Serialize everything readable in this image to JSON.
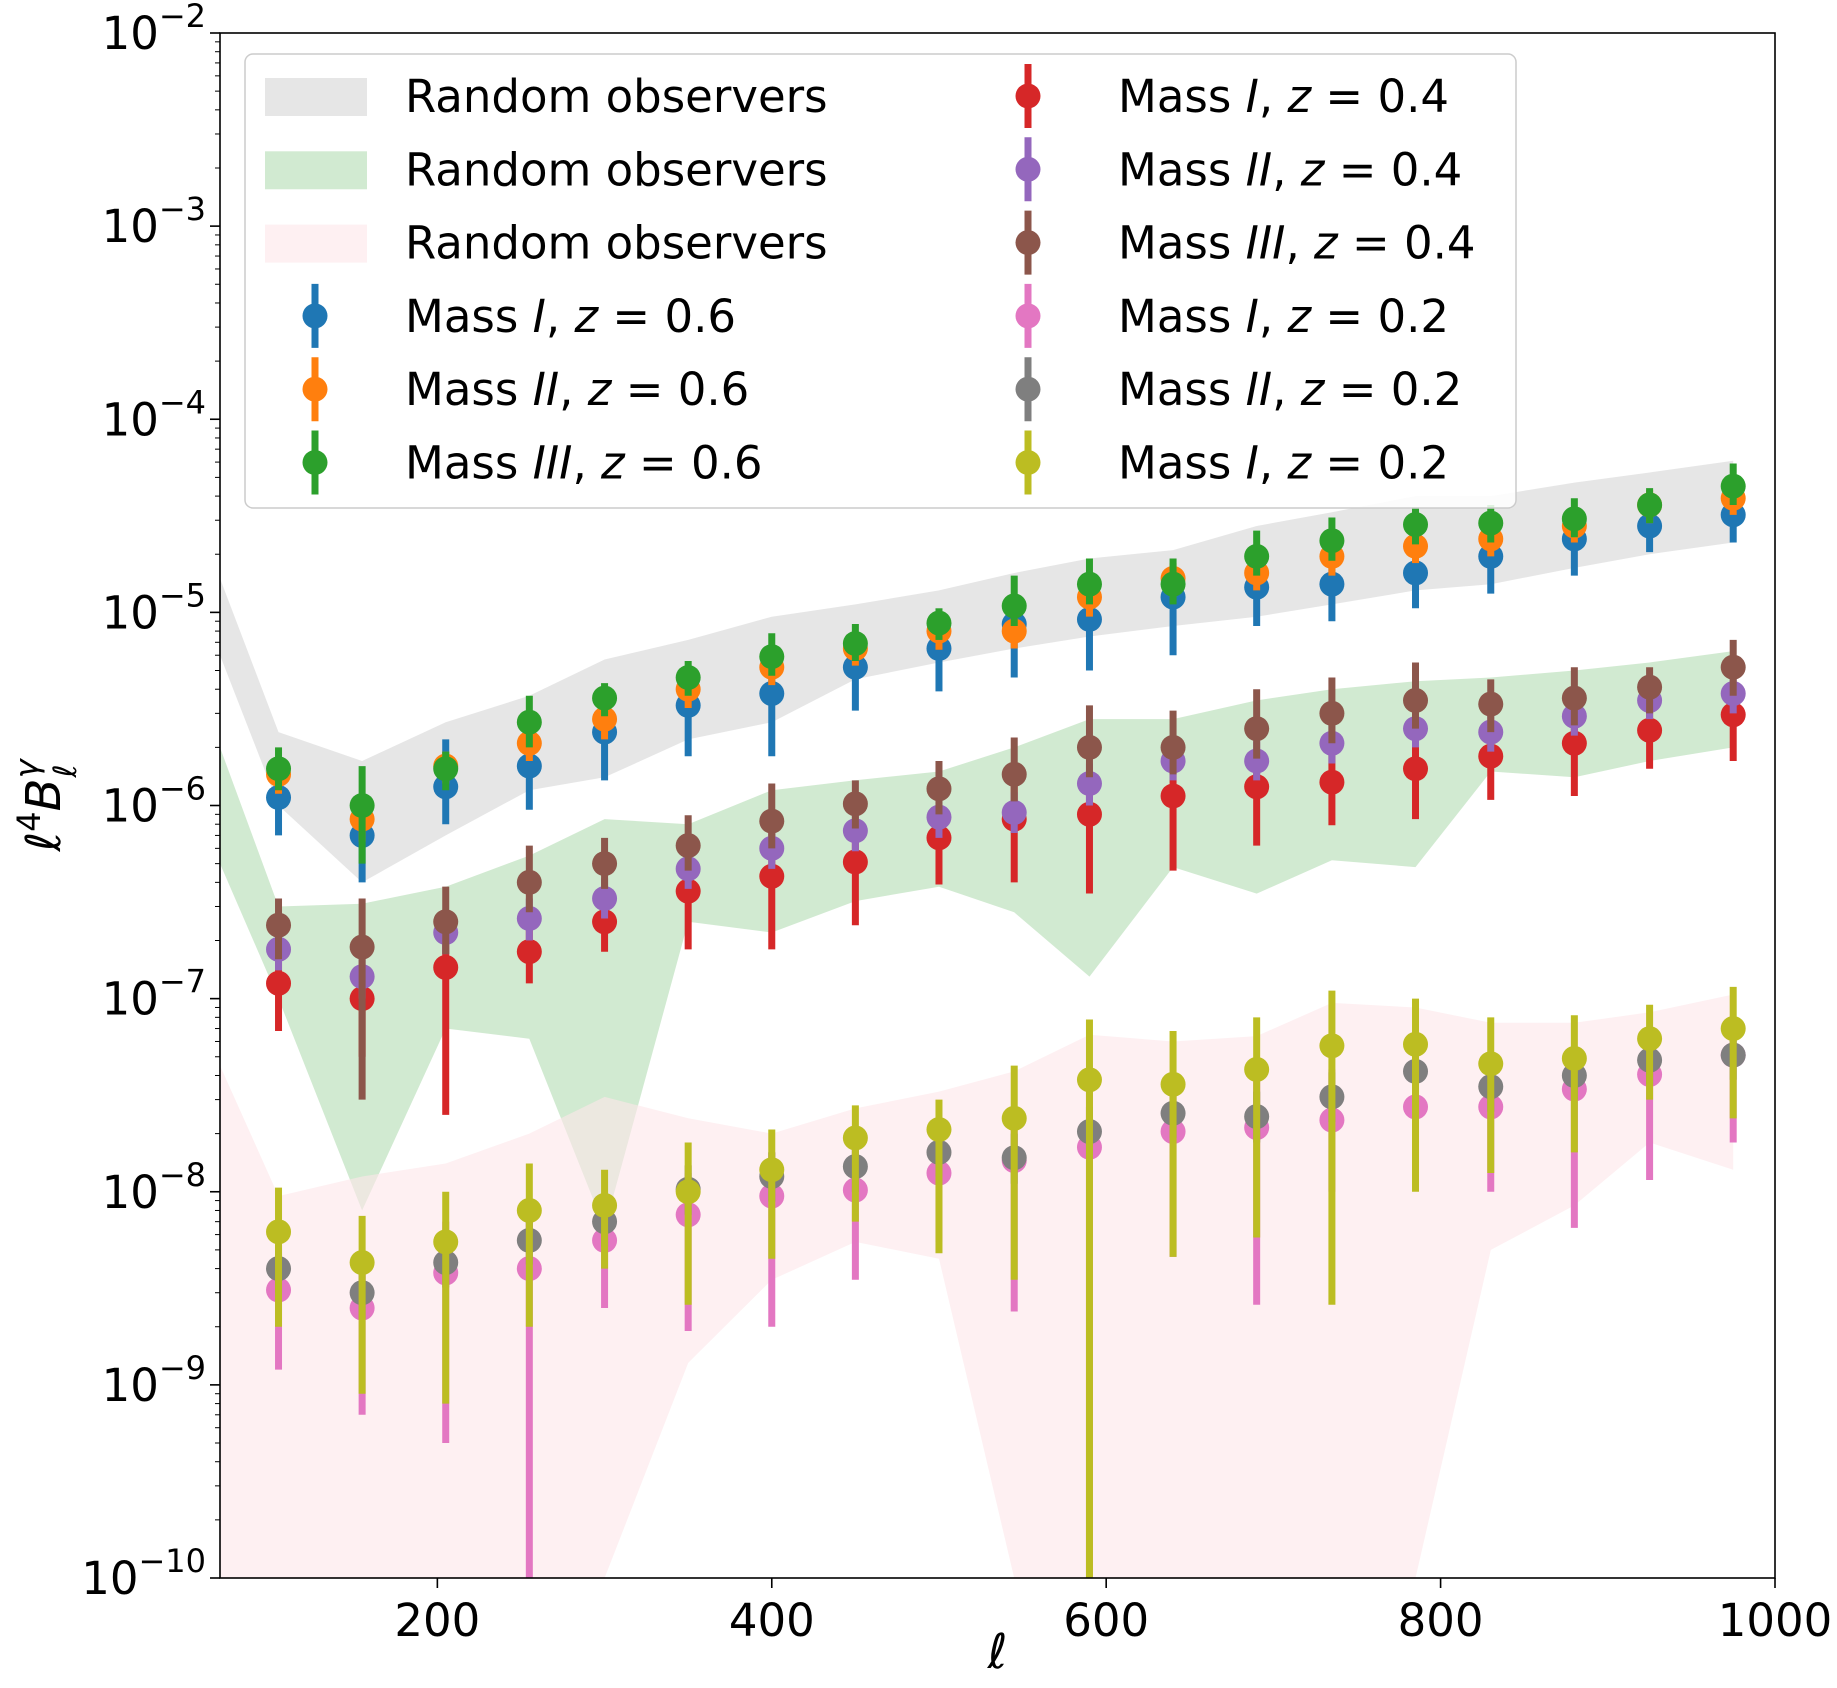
{
  "chart_data": {
    "type": "scatter",
    "title": "",
    "xlabel": "ℓ",
    "ylabel": "ℓ⁴B_ℓ^γ",
    "xscale": "linear",
    "yscale": "log",
    "xlim": [
      70,
      1000
    ],
    "ylim": [
      1e-10,
      0.01
    ],
    "grid": false,
    "legend_position": "upper-left",
    "x_ticks": [
      {
        "value": 200,
        "label": "200"
      },
      {
        "value": 400,
        "label": "400"
      },
      {
        "value": 600,
        "label": "600"
      },
      {
        "value": 800,
        "label": "800"
      },
      {
        "value": 1000,
        "label": "1000"
      }
    ],
    "y_ticks": [
      {
        "value": 1e-10,
        "base": "10",
        "exp": "−10"
      },
      {
        "value": 1e-09,
        "base": "10",
        "exp": "−9"
      },
      {
        "value": 1e-08,
        "base": "10",
        "exp": "−8"
      },
      {
        "value": 1e-07,
        "base": "10",
        "exp": "−7"
      },
      {
        "value": 1e-06,
        "base": "10",
        "exp": "−6"
      },
      {
        "value": 1e-05,
        "base": "10",
        "exp": "−5"
      },
      {
        "value": 0.0001,
        "base": "10",
        "exp": "−4"
      },
      {
        "value": 0.001,
        "base": "10",
        "exp": "−3"
      },
      {
        "value": 0.01,
        "base": "10",
        "exp": "−2"
      }
    ],
    "bands": [
      {
        "name": "Random observers",
        "color": "#c8c8c8",
        "opacity": 0.45,
        "x": [
          70,
          105,
          155,
          205,
          255,
          300,
          350,
          400,
          450,
          500,
          545,
          590,
          640,
          690,
          735,
          785,
          830,
          880,
          925,
          975
        ],
        "upper": [
          1.5e-05,
          2.4e-06,
          1.7e-06,
          2.7e-06,
          3.7e-06,
          5.7e-06,
          7.2e-06,
          9.5e-06,
          1.1e-05,
          1.3e-05,
          1.6e-05,
          1.9e-05,
          2.1e-05,
          2.8e-05,
          3.3e-05,
          4e-05,
          4e-05,
          4.7e-05,
          5.3e-05,
          6.1e-05
        ],
        "lower": [
          6e-06,
          1e-06,
          4e-07,
          7e-07,
          1.2e-06,
          1.4e-06,
          2.2e-06,
          2.7e-06,
          4.5e-06,
          5.5e-06,
          6.5e-06,
          7.5e-06,
          8.5e-06,
          9.5e-06,
          1.1e-05,
          1.3e-05,
          1.4e-05,
          1.7e-05,
          2e-05,
          2.3e-05
        ]
      },
      {
        "name": "Random observers",
        "color": "#2ca02c",
        "opacity": 0.22,
        "x": [
          70,
          105,
          155,
          205,
          255,
          300,
          350,
          400,
          450,
          500,
          545,
          590,
          640,
          690,
          735,
          785,
          830,
          880,
          925,
          975
        ],
        "upper": [
          2e-06,
          3e-07,
          3.1e-07,
          3.8e-07,
          5.5e-07,
          8.5e-07,
          8e-07,
          1.2e-06,
          1.35e-06,
          1.5e-06,
          2e-06,
          2.8e-06,
          2.8e-06,
          3.5e-06,
          4e-06,
          4.4e-06,
          4.6e-06,
          5e-06,
          5.5e-06,
          6.3e-06
        ],
        "lower": [
          5e-07,
          1e-07,
          8e-09,
          7e-08,
          6.2e-08,
          6.5e-09,
          2.5e-07,
          2.2e-07,
          3.2e-07,
          3.8e-07,
          2.8e-07,
          1.3e-07,
          4.8e-07,
          3.5e-07,
          5.2e-07,
          4.8e-07,
          1.5e-06,
          1.4e-06,
          1.7e-06,
          2e-06
        ]
      },
      {
        "name": "Random observers",
        "color": "#fde6ea",
        "opacity": 0.6,
        "x": [
          70,
          105,
          155,
          205,
          255,
          300,
          350,
          400,
          450,
          500,
          545,
          590,
          640,
          690,
          735,
          785,
          830,
          880,
          925,
          975
        ],
        "upper": [
          4.5e-08,
          9.5e-09,
          1.2e-08,
          1.4e-08,
          2e-08,
          3.1e-08,
          2.4e-08,
          2e-08,
          2.7e-08,
          3.3e-08,
          4.2e-08,
          6.5e-08,
          6e-08,
          6.4e-08,
          9.5e-08,
          9e-08,
          7.5e-08,
          7.5e-08,
          8.5e-08,
          1.05e-07
        ],
        "lower": [
          1e-10,
          1e-10,
          1e-10,
          1e-10,
          1e-10,
          1e-10,
          1.3e-09,
          3.5e-09,
          5.5e-09,
          4.5e-09,
          1e-10,
          1e-10,
          1e-10,
          1e-10,
          1e-10,
          1e-10,
          5e-09,
          8.5e-09,
          1.8e-08,
          1.3e-08
        ]
      }
    ],
    "series": [
      {
        "name": "Mass I, z=0.6",
        "label_parts": [
          "Mass ",
          "I",
          ", z = 0.6"
        ],
        "color": "#1f77b4",
        "x": [
          105,
          155,
          205,
          255,
          300,
          350,
          400,
          450,
          500,
          545,
          590,
          640,
          690,
          735,
          785,
          830,
          880,
          925,
          975
        ],
        "y": [
          1.1e-06,
          7e-07,
          1.25e-06,
          1.6e-06,
          2.4e-06,
          3.3e-06,
          3.8e-06,
          5.2e-06,
          6.5e-06,
          8.7e-06,
          9.2e-06,
          1.2e-05,
          1.35e-05,
          1.4e-05,
          1.6e-05,
          1.95e-05,
          2.4e-05,
          2.8e-05,
          3.2e-05
        ],
        "yerr_low": [
          7e-07,
          4e-07,
          8e-07,
          9.5e-07,
          1.35e-06,
          1.8e-06,
          1.8e-06,
          3.1e-06,
          3.9e-06,
          4.6e-06,
          5e-06,
          6e-06,
          8.5e-06,
          9e-06,
          1.05e-05,
          1.25e-05,
          1.55e-05,
          2.05e-05,
          2.3e-05
        ],
        "yerr_high": [
          1.6e-06,
          9e-07,
          2.2e-06,
          2.3e-06,
          3.5e-06,
          4.5e-06,
          5.8e-06,
          6.9e-06,
          9e-06,
          1.1e-05,
          1.3e-05,
          1.6e-05,
          1.9e-05,
          2e-05,
          2.3e-05,
          2.8e-05,
          3.2e-05,
          3.8e-05,
          4.3e-05
        ]
      },
      {
        "name": "Mass II, z=0.6",
        "label_parts": [
          "Mass ",
          "II",
          ", z = 0.6"
        ],
        "color": "#ff7f0e",
        "x": [
          105,
          155,
          205,
          255,
          300,
          350,
          400,
          450,
          500,
          545,
          590,
          640,
          690,
          735,
          785,
          830,
          880,
          925,
          975
        ],
        "y": [
          1.45e-06,
          8.5e-07,
          1.6e-06,
          2.1e-06,
          2.8e-06,
          4e-06,
          5.2e-06,
          6.5e-06,
          8e-06,
          8e-06,
          1.2e-05,
          1.5e-05,
          1.6e-05,
          1.95e-05,
          2.2e-05,
          2.4e-05,
          2.8e-05,
          3.6e-05,
          3.9e-05
        ],
        "yerr_low": [
          1.15e-06,
          6.5e-07,
          1.3e-06,
          1.7e-06,
          2.2e-06,
          3.2e-06,
          4.2e-06,
          5.3e-06,
          6.4e-06,
          6.5e-06,
          9.5e-06,
          1.2e-05,
          1.3e-05,
          1.55e-05,
          1.8e-05,
          1.95e-05,
          2.3e-05,
          2.9e-05,
          3.2e-05
        ],
        "yerr_high": [
          1.75e-06,
          1.05e-06,
          1.9e-06,
          2.5e-06,
          3.4e-06,
          4.8e-06,
          6.2e-06,
          7.8e-06,
          9.5e-06,
          9.6e-06,
          1.45e-05,
          1.8e-05,
          1.95e-05,
          2.35e-05,
          2.6e-05,
          2.9e-05,
          3.4e-05,
          4.3e-05,
          4.7e-05
        ]
      },
      {
        "name": "Mass III, z=0.6",
        "label_parts": [
          "Mass ",
          "III",
          ", z = 0.6"
        ],
        "color": "#2ca02c",
        "x": [
          105,
          155,
          205,
          255,
          300,
          350,
          400,
          450,
          500,
          545,
          590,
          640,
          690,
          735,
          785,
          830,
          880,
          925,
          975
        ],
        "y": [
          1.55e-06,
          1e-06,
          1.55e-06,
          2.7e-06,
          3.6e-06,
          4.6e-06,
          5.9e-06,
          6.9e-06,
          8.8e-06,
          1.08e-05,
          1.4e-05,
          1.4e-05,
          1.95e-05,
          2.35e-05,
          2.85e-05,
          2.9e-05,
          3.05e-05,
          3.6e-05,
          4.5e-05
        ],
        "yerr_low": [
          1.2e-06,
          5e-07,
          1.2e-06,
          2e-06,
          2.9e-06,
          3.7e-06,
          4.7e-06,
          5.6e-06,
          7.2e-06,
          8.5e-06,
          1.1e-05,
          1.1e-05,
          1.55e-05,
          1.85e-05,
          2.25e-05,
          2.3e-05,
          2.45e-05,
          2.9e-05,
          3.6e-05
        ],
        "yerr_high": [
          2e-06,
          1.6e-06,
          1.9e-06,
          3.7e-06,
          4.3e-06,
          5.6e-06,
          7.8e-06,
          8.7e-06,
          1.05e-05,
          1.55e-05,
          1.9e-05,
          1.9e-05,
          2.65e-05,
          3.1e-05,
          3.5e-05,
          3.6e-05,
          3.9e-05,
          4.4e-05,
          5.9e-05
        ]
      },
      {
        "name": "Mass I, z=0.4",
        "label_parts": [
          "Mass ",
          "I",
          ", z = 0.4"
        ],
        "color": "#d62728",
        "x": [
          105,
          155,
          205,
          255,
          300,
          350,
          400,
          450,
          500,
          545,
          590,
          640,
          690,
          735,
          785,
          830,
          880,
          925,
          975
        ],
        "y": [
          1.2e-07,
          1e-07,
          1.45e-07,
          1.75e-07,
          2.5e-07,
          3.6e-07,
          4.3e-07,
          5.1e-07,
          6.8e-07,
          8.5e-07,
          9e-07,
          1.12e-06,
          1.25e-06,
          1.32e-06,
          1.55e-06,
          1.8e-06,
          2.1e-06,
          2.45e-06,
          2.95e-06
        ],
        "yerr_low": [
          6.8e-08,
          5e-08,
          2.5e-08,
          1.2e-07,
          1.75e-07,
          1.8e-07,
          1.8e-07,
          2.4e-07,
          3.9e-07,
          4e-07,
          3.5e-07,
          4.6e-07,
          6.2e-07,
          7.9e-07,
          8.5e-07,
          1.07e-06,
          1.12e-06,
          1.55e-06,
          1.7e-06
        ],
        "yerr_high": [
          1.75e-07,
          1.5e-07,
          2.6e-07,
          2.3e-07,
          3.2e-07,
          5.6e-07,
          7.2e-07,
          8.2e-07,
          9.9e-07,
          1.3e-06,
          1.46e-06,
          1.8e-06,
          1.9e-06,
          1.85e-06,
          2.25e-06,
          2.5e-06,
          3.1e-06,
          3.4e-06,
          4.2e-06
        ]
      },
      {
        "name": "Mass II, z=0.4",
        "label_parts": [
          "Mass ",
          "II",
          ", z = 0.4"
        ],
        "color": "#9467bd",
        "x": [
          105,
          155,
          205,
          255,
          300,
          350,
          400,
          450,
          500,
          545,
          590,
          640,
          690,
          735,
          785,
          830,
          880,
          925,
          975
        ],
        "y": [
          1.8e-07,
          1.3e-07,
          2.2e-07,
          2.6e-07,
          3.3e-07,
          4.7e-07,
          6e-07,
          7.4e-07,
          8.7e-07,
          9.2e-07,
          1.3e-06,
          1.7e-06,
          1.7e-06,
          2.1e-06,
          2.5e-06,
          2.4e-06,
          2.9e-06,
          3.5e-06,
          3.8e-06
        ],
        "yerr_low": [
          1.4e-07,
          1e-07,
          1.7e-07,
          2e-07,
          2.6e-07,
          3.7e-07,
          4.7e-07,
          5.8e-07,
          6.8e-07,
          7.2e-07,
          1e-06,
          1.35e-06,
          1.35e-06,
          1.65e-06,
          2e-06,
          1.9e-06,
          2.3e-06,
          2.8e-06,
          3e-06
        ],
        "yerr_high": [
          2.3e-07,
          1.7e-07,
          2.8e-07,
          3.3e-07,
          4.2e-07,
          6e-07,
          7.6e-07,
          9.4e-07,
          1.1e-06,
          1.17e-06,
          1.65e-06,
          2.15e-06,
          2.15e-06,
          2.65e-06,
          3.15e-06,
          3e-06,
          3.65e-06,
          4.4e-06,
          4.8e-06
        ]
      },
      {
        "name": "Mass III, z=0.4",
        "label_parts": [
          "Mass ",
          "III",
          ", z = 0.4"
        ],
        "color": "#8c564b",
        "x": [
          105,
          155,
          205,
          255,
          300,
          350,
          400,
          450,
          500,
          545,
          590,
          640,
          690,
          735,
          785,
          830,
          880,
          925,
          975
        ],
        "y": [
          2.4e-07,
          1.85e-07,
          2.5e-07,
          4e-07,
          5e-07,
          6.2e-07,
          8.3e-07,
          1.02e-06,
          1.22e-06,
          1.45e-06,
          2e-06,
          2e-06,
          2.5e-06,
          3e-06,
          3.5e-06,
          3.35e-06,
          3.6e-06,
          4.1e-06,
          5.2e-06
        ],
        "yerr_low": [
          1.6e-07,
          3e-08,
          1.7e-07,
          2.8e-07,
          3.7e-07,
          4.6e-07,
          6e-07,
          7.6e-07,
          9e-07,
          1.05e-06,
          1.4e-06,
          1.45e-06,
          1.75e-06,
          2.1e-06,
          2.5e-06,
          2.4e-06,
          2.6e-06,
          3e-06,
          3.7e-06
        ],
        "yerr_high": [
          3.3e-07,
          3.3e-07,
          3.8e-07,
          6.2e-07,
          6.8e-07,
          8.9e-07,
          1.3e-06,
          1.35e-06,
          1.7e-06,
          2.25e-06,
          3.3e-06,
          3.1e-06,
          4e-06,
          4.6e-06,
          5.5e-06,
          4.5e-06,
          5.2e-06,
          5.2e-06,
          7.2e-06
        ]
      },
      {
        "name": "Mass I, z=0.2",
        "label_parts": [
          "Mass ",
          "I",
          ", z = 0.2"
        ],
        "color": "#e377c2",
        "x": [
          105,
          155,
          205,
          255,
          300,
          350,
          400,
          450,
          500,
          545,
          590,
          640,
          690,
          735,
          785,
          830,
          880,
          925,
          975
        ],
        "y": [
          3.1e-09,
          2.5e-09,
          3.8e-09,
          4e-09,
          5.6e-09,
          7.6e-09,
          9.5e-09,
          1.02e-08,
          1.25e-08,
          1.45e-08,
          1.7e-08,
          2.05e-08,
          2.15e-08,
          2.35e-08,
          2.75e-08,
          2.75e-08,
          3.4e-08,
          4.05e-08,
          5.1e-08
        ],
        "yerr_low": [
          1.2e-09,
          7e-10,
          5e-10,
          1e-10,
          2.5e-09,
          1.9e-09,
          2e-09,
          3.5e-09,
          5.5e-09,
          2.4e-09,
          1e-10,
          4.6e-09,
          2.6e-09,
          1e-08,
          1.3e-08,
          1e-08,
          6.5e-09,
          1.15e-08,
          1.8e-08
        ],
        "yerr_high": [
          4.8e-09,
          4.2e-09,
          7e-09,
          7.5e-09,
          8.5e-09,
          1.25e-08,
          1.6e-08,
          1.7e-08,
          2e-08,
          2.6e-08,
          3.3e-08,
          3.6e-08,
          4.1e-08,
          4.3e-08,
          4.5e-08,
          4.5e-08,
          5.6e-08,
          6.3e-08,
          7.2e-08
        ]
      },
      {
        "name": "Mass II, z=0.2",
        "label_parts": [
          "Mass ",
          "II",
          ", z = 0.2"
        ],
        "color": "#7f7f7f",
        "x": [
          105,
          155,
          205,
          255,
          300,
          350,
          400,
          450,
          500,
          545,
          590,
          640,
          690,
          735,
          785,
          830,
          880,
          925,
          975
        ],
        "y": [
          4e-09,
          3e-09,
          4.3e-09,
          5.6e-09,
          7e-09,
          1.03e-08,
          1.2e-08,
          1.35e-08,
          1.6e-08,
          1.5e-08,
          2.05e-08,
          2.55e-08,
          2.45e-08,
          3.1e-08,
          4.2e-08,
          3.5e-08,
          4e-08,
          4.8e-08,
          5.1e-08
        ],
        "yerr_low": [
          3e-09,
          2.2e-09,
          3.2e-09,
          4.2e-09,
          5.2e-09,
          7.6e-09,
          8.9e-09,
          1e-08,
          1.2e-08,
          1.1e-08,
          1.5e-08,
          1.9e-08,
          1.8e-08,
          2.3e-08,
          3.1e-08,
          2.6e-08,
          3e-08,
          3.6e-08,
          3.8e-08
        ],
        "yerr_high": [
          5.3e-09,
          4e-09,
          5.7e-09,
          7.5e-09,
          9.3e-09,
          1.37e-08,
          1.6e-08,
          1.8e-08,
          2.15e-08,
          2e-08,
          2.75e-08,
          3.4e-08,
          3.3e-08,
          4.15e-08,
          5.6e-08,
          4.7e-08,
          5.3e-08,
          6.4e-08,
          6.8e-08
        ]
      },
      {
        "name": "Mass I, z=0.2 (olive)",
        "label_parts": [
          "Mass ",
          "I",
          ", z = 0.2"
        ],
        "color": "#bcbd22",
        "x": [
          105,
          155,
          205,
          255,
          300,
          350,
          400,
          450,
          500,
          545,
          590,
          640,
          690,
          735,
          785,
          830,
          880,
          925,
          975
        ],
        "y": [
          6.2e-09,
          4.3e-09,
          5.5e-09,
          8e-09,
          8.5e-09,
          1e-08,
          1.3e-08,
          1.9e-08,
          2.1e-08,
          2.4e-08,
          3.8e-08,
          3.6e-08,
          4.3e-08,
          5.7e-08,
          5.8e-08,
          4.6e-08,
          4.9e-08,
          6.2e-08,
          7e-08
        ],
        "yerr_low": [
          2e-09,
          9e-10,
          8e-10,
          2e-09,
          4e-09,
          2.6e-09,
          4.5e-09,
          7e-09,
          4.8e-09,
          3.5e-09,
          1e-10,
          4.6e-09,
          5.8e-09,
          2.6e-09,
          1e-08,
          1.25e-08,
          1.6e-08,
          3e-08,
          2.4e-08
        ],
        "yerr_high": [
          1.05e-08,
          7.5e-09,
          1e-08,
          1.4e-08,
          1.3e-08,
          1.8e-08,
          2.1e-08,
          2.8e-08,
          3e-08,
          4.5e-08,
          7.8e-08,
          6.8e-08,
          8e-08,
          1.1e-07,
          1e-07,
          8e-08,
          8.2e-08,
          9.3e-08,
          1.15e-07
        ]
      }
    ]
  }
}
